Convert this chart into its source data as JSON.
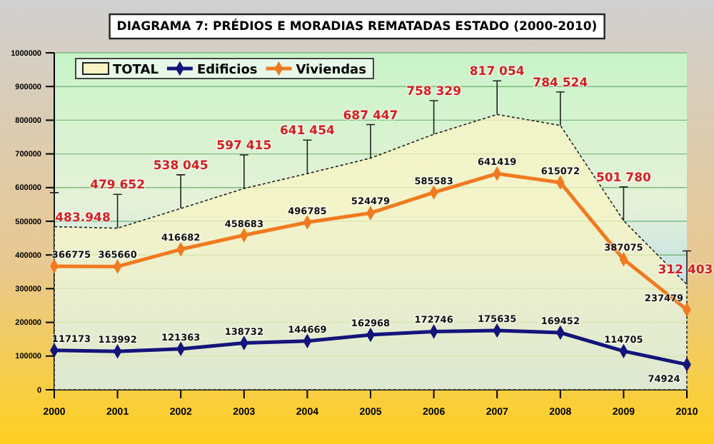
{
  "chart_data": {
    "type": "line",
    "title": "DIAGRAMA 7: PRÉDIOS E MORADIAS REMATADAS ESTADO (2000-2010)",
    "x": [
      2000,
      2001,
      2002,
      2003,
      2004,
      2005,
      2006,
      2007,
      2008,
      2009,
      2010
    ],
    "xlim": [
      2000,
      2010
    ],
    "xticks": [
      2000,
      2001,
      2002,
      2003,
      2004,
      2005,
      2006,
      2007,
      2008,
      2009,
      2010
    ],
    "ylim": [
      0,
      1000000
    ],
    "yticks": [
      0,
      100000,
      200000,
      300000,
      400000,
      500000,
      600000,
      700000,
      800000,
      900000,
      1000000
    ],
    "grid": "y",
    "legend": "top left",
    "marker": "diamond",
    "series": [
      {
        "name": "TOTAL",
        "type": "area",
        "marker": "none",
        "color": "#f8f4c4",
        "values": [
          483948,
          479652,
          538045,
          597415,
          641454,
          687447,
          758329,
          817054,
          784524,
          501780,
          312403
        ],
        "value_labels": [
          "483.948",
          "479 652",
          "538 045",
          "597 415",
          "641 454",
          "687 447",
          "758 329",
          "817 054",
          "784 524",
          "501 780",
          "312 403"
        ],
        "errors": [
          [
            483948,
            585000
          ],
          [
            479652,
            580000
          ],
          [
            538045,
            638000
          ],
          [
            597415,
            697000
          ],
          [
            641454,
            741000
          ],
          [
            687447,
            787000
          ],
          [
            758329,
            858000
          ],
          [
            817054,
            917000
          ],
          [
            784524,
            884000
          ],
          [
            501780,
            602000
          ],
          [
            312403,
            412000
          ]
        ]
      },
      {
        "name": "Edificios",
        "type": "line",
        "color": "#14147a",
        "values": [
          117173,
          113992,
          121363,
          138732,
          144669,
          162968,
          172746,
          175635,
          169452,
          114705,
          74924
        ],
        "value_labels": [
          "117173",
          "113992",
          "121363",
          "138732",
          "144669",
          "162968",
          "172746",
          "175635",
          "169452",
          "114705",
          "74924"
        ]
      },
      {
        "name": "Viviendas",
        "type": "line",
        "color": "#f07a20",
        "values": [
          366775,
          365660,
          416682,
          458683,
          496785,
          524479,
          585583,
          641419,
          615072,
          387075,
          237479
        ],
        "value_labels": [
          "366775",
          "365660",
          "416682",
          "458683",
          "496785",
          "524479",
          "585583",
          "641419",
          "615072",
          "387075",
          "237479"
        ]
      }
    ]
  }
}
